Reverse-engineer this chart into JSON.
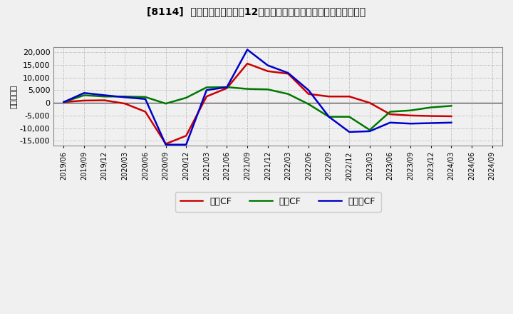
{
  "title": "[8114]  キャッシュフローの12か月移動合計の対前年同期増減額の推移",
  "ylabel": "（百万円）",
  "background_color": "#f0f0f0",
  "plot_bg_color": "#f0f0f0",
  "grid_color": "#999999",
  "x_labels": [
    "2019/06",
    "2019/09",
    "2019/12",
    "2020/03",
    "2020/06",
    "2020/09",
    "2020/12",
    "2021/03",
    "2021/06",
    "2021/09",
    "2021/12",
    "2022/03",
    "2022/06",
    "2022/09",
    "2022/12",
    "2023/03",
    "2023/06",
    "2023/09",
    "2023/12",
    "2024/03",
    "2024/06",
    "2024/09"
  ],
  "operating_cf": [
    300,
    900,
    1000,
    -300,
    -3500,
    -16200,
    -13000,
    2500,
    5800,
    15500,
    12500,
    11500,
    3500,
    2500,
    2500,
    0,
    -4500,
    -5000,
    -5200,
    -5300,
    null,
    null
  ],
  "investing_cf": [
    300,
    3000,
    2500,
    2500,
    2300,
    -300,
    2000,
    6100,
    6200,
    5500,
    5300,
    3500,
    -500,
    -5500,
    -5500,
    -10700,
    -3500,
    -3000,
    -1800,
    -1200,
    null,
    null
  ],
  "free_cf": [
    300,
    3900,
    3000,
    2200,
    1500,
    -16500,
    -16500,
    5000,
    6200,
    21000,
    14800,
    11800,
    5000,
    -5500,
    -11500,
    -11200,
    -7800,
    -8200,
    -8000,
    -7800,
    null,
    null
  ],
  "operating_color": "#cc0000",
  "investing_color": "#007700",
  "free_color": "#0000cc",
  "ylim": [
    -17000,
    22000
  ],
  "yticks": [
    -15000,
    -10000,
    -5000,
    0,
    5000,
    10000,
    15000,
    20000
  ],
  "legend_labels": [
    "営業CF",
    "投資CF",
    "フリーCF"
  ]
}
